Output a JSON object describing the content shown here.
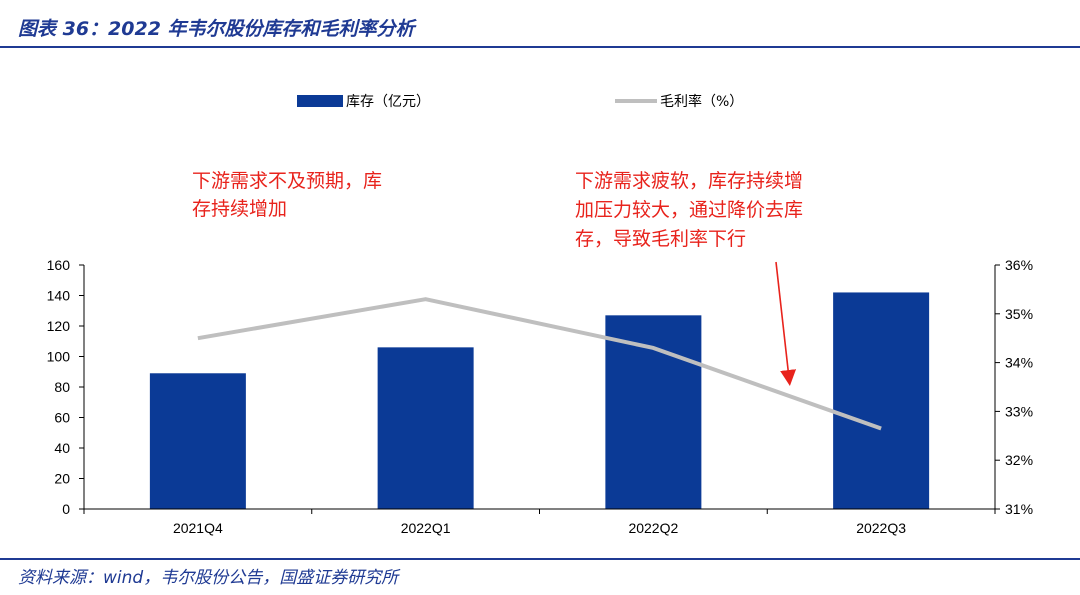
{
  "header": {
    "title": "图表 36：2022 年韦尔股份库存和毛利率分析"
  },
  "footer": {
    "source": "资料来源：wind，韦尔股份公告，国盛证券研究所"
  },
  "colors": {
    "bar": "#0b3a96",
    "line": "#bfbfbf",
    "annotation": "#e8231c",
    "accent": "#1f3a93"
  },
  "chart_data": {
    "type": "bar",
    "categories": [
      "2021Q4",
      "2022Q1",
      "2022Q2",
      "2022Q3"
    ],
    "series": [
      {
        "name": "库存（亿元）",
        "type": "bar",
        "axis": "left",
        "values": [
          89,
          106,
          127,
          142
        ]
      },
      {
        "name": "毛利率（%）",
        "type": "line",
        "axis": "right",
        "values": [
          34.5,
          35.3,
          34.3,
          32.65
        ]
      }
    ],
    "ylim": [
      0,
      160
    ],
    "yticks": [
      0,
      20,
      40,
      60,
      80,
      100,
      120,
      140,
      160
    ],
    "y2lim": [
      31,
      36
    ],
    "y2ticks": [
      "31%",
      "32%",
      "33%",
      "34%",
      "35%",
      "36%"
    ],
    "legend_position": "top",
    "grid": false,
    "annotations": [
      {
        "text": [
          "下游需求不及预期，库",
          "存持续增加"
        ]
      },
      {
        "text": [
          "下游需求疲软，库存持续增",
          "加压力较大，通过降价去库",
          "存，导致毛利率下行"
        ]
      }
    ]
  }
}
